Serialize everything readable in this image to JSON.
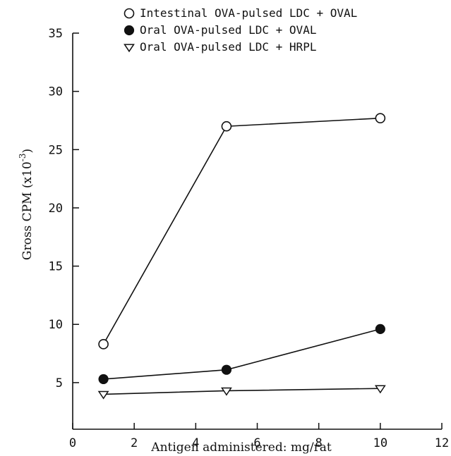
{
  "chart_data": {
    "type": "line",
    "title": "",
    "xlabel": "Antigen administered: mg/rat",
    "ylabel_base": "Gross CPM (x10",
    "ylabel_exp": "-3",
    "ylabel_close": ")",
    "xlim": [
      0,
      12
    ],
    "ylim": [
      1,
      35
    ],
    "x_ticks": [
      0,
      2,
      4,
      6,
      8,
      10,
      12
    ],
    "y_ticks": [
      5,
      10,
      15,
      20,
      25,
      30,
      35
    ],
    "grid": false,
    "legend_position": "top",
    "series": [
      {
        "name": "Intestinal OVA-pulsed LDC + OVAL",
        "marker": "open-circle",
        "x": [
          1,
          5,
          10
        ],
        "y": [
          8.3,
          27.0,
          27.7
        ]
      },
      {
        "name": "Oral OVA-pulsed LDC + OVAL",
        "marker": "filled-circle",
        "x": [
          1,
          5,
          10
        ],
        "y": [
          5.3,
          6.1,
          9.6
        ]
      },
      {
        "name": "Oral OVA-pulsed LDC + HRPL",
        "marker": "open-triangle-down",
        "x": [
          1,
          5,
          10
        ],
        "y": [
          4.0,
          4.3,
          4.5
        ]
      }
    ]
  }
}
